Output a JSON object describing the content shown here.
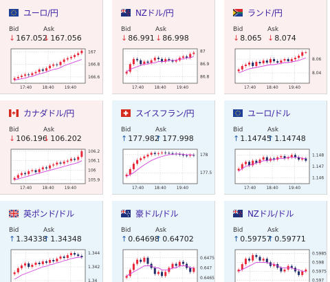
{
  "colors": {
    "down_card_bg": "#fbeff0",
    "up_card_bg": "#eaf4fb",
    "pair_name": "#3a1fa3",
    "down_arrow": "#e0393e",
    "up_arrow": "#1e5ba8",
    "candle_up": "#e8283a",
    "candle_down": "#1f2c66",
    "ma_line": "#d33fdc",
    "plot_grid": "#c8c8c8"
  },
  "labels": {
    "bid": "Bid",
    "ask": "Ask"
  },
  "cards": [
    {
      "pair": "ユーロ/円",
      "flag_icon": "eu-flag-icon",
      "direction": "down",
      "bid": "167.052",
      "ask": "167.056",
      "chart_data": {
        "type": "candlestick",
        "x_ticks": [
          "17:40",
          "18:40",
          "19:40"
        ],
        "y_ticks": [
          "167",
          "166.8",
          "166.6"
        ],
        "y_tick_values": [
          167,
          166.8,
          166.6
        ],
        "ylim": [
          166.5,
          167.05
        ],
        "series": [
          {
            "values": [
              166.58,
              166.6,
              166.62,
              166.64,
              166.63,
              166.66,
              166.68,
              166.72,
              166.7,
              166.74,
              166.78,
              166.8,
              166.79,
              166.84,
              166.88,
              166.9,
              166.92,
              166.95,
              166.98,
              167.02
            ]
          },
          {
            "values": [
              166.55,
              166.56,
              166.57,
              166.58,
              166.6,
              166.61,
              166.63,
              166.65,
              166.66,
              166.68,
              166.7,
              166.72,
              166.73,
              166.75,
              166.78,
              166.8,
              166.82,
              166.84,
              166.86,
              166.88
            ]
          }
        ]
      }
    },
    {
      "pair": "NZドル/円",
      "flag_icon": "nz-flag-icon",
      "direction": "down",
      "bid": "86.991",
      "ask": "86.998",
      "chart_data": {
        "type": "candlestick",
        "x_ticks": [
          "17:40",
          "18:40",
          "19:40"
        ],
        "y_ticks": [
          "87",
          "86.9",
          "86.8"
        ],
        "y_tick_values": [
          87,
          86.9,
          86.8
        ],
        "ylim": [
          86.75,
          87.02
        ],
        "series": [
          {
            "values": [
              86.84,
              86.9,
              86.94,
              86.93,
              86.9,
              86.92,
              86.91,
              86.93,
              86.95,
              86.94,
              86.92,
              86.94,
              86.93,
              86.92,
              86.93,
              86.95,
              86.96,
              86.95,
              86.98,
              86.99
            ]
          },
          {
            "values": [
              86.84,
              86.86,
              86.87,
              86.88,
              86.89,
              86.9,
              86.9,
              86.91,
              86.91,
              86.92,
              86.92,
              86.92,
              86.93,
              86.93,
              86.93,
              86.94,
              86.94,
              86.95,
              86.95,
              86.96
            ]
          }
        ]
      }
    },
    {
      "pair": "ランド/円",
      "flag_icon": "za-flag-icon",
      "direction": "down",
      "bid": "8.065",
      "ask": "8.074",
      "chart_data": {
        "type": "candlestick",
        "x_ticks": [
          "17:40",
          "18:40",
          "19:40"
        ],
        "y_ticks": [
          "8.06",
          "8.04"
        ],
        "y_tick_values": [
          8.06,
          8.04
        ],
        "ylim": [
          8.025,
          8.075
        ],
        "series": [
          {
            "values": [
              8.045,
              8.05,
              8.052,
              8.055,
              8.05,
              8.056,
              8.054,
              8.058,
              8.055,
              8.06,
              8.057,
              8.055,
              8.058,
              8.06,
              8.057,
              8.06,
              8.062,
              8.065,
              8.07,
              8.07
            ]
          },
          {
            "values": [
              8.04,
              8.042,
              8.044,
              8.046,
              8.047,
              8.048,
              8.049,
              8.05,
              8.051,
              8.052,
              8.052,
              8.053,
              8.054,
              8.055,
              8.055,
              8.056,
              8.057,
              8.058,
              8.06,
              8.062
            ]
          }
        ]
      }
    },
    {
      "pair": "カナダドル/円",
      "flag_icon": "ca-flag-icon",
      "direction": "down",
      "bid": "106.196",
      "ask": "106.202",
      "chart_data": {
        "type": "candlestick",
        "x_ticks": [
          "17:40",
          "18:40",
          "19:40"
        ],
        "y_ticks": [
          "106.2",
          "106.1",
          "106",
          "105.9"
        ],
        "y_tick_values": [
          106.2,
          106.1,
          106,
          105.9
        ],
        "ylim": [
          105.86,
          106.22
        ],
        "series": [
          {
            "values": [
              105.92,
              105.95,
              105.97,
              105.96,
              105.99,
              106.0,
              105.98,
              106.01,
              106.03,
              106.02,
              106.05,
              106.06,
              106.08,
              106.07,
              106.09,
              106.1,
              106.12,
              106.11,
              106.14,
              106.2
            ]
          },
          {
            "values": [
              105.9,
              105.91,
              105.92,
              105.93,
              105.94,
              105.95,
              105.96,
              105.97,
              105.98,
              105.99,
              106.0,
              106.01,
              106.02,
              106.03,
              106.04,
              106.05,
              106.06,
              106.07,
              106.08,
              106.1
            ]
          }
        ]
      }
    },
    {
      "pair": "スイスフラン/円",
      "flag_icon": "ch-flag-icon",
      "direction": "up",
      "bid": "177.982",
      "ask": "177.998",
      "chart_data": {
        "type": "candlestick",
        "x_ticks": [
          "17:40",
          "18:40",
          "19:40"
        ],
        "y_ticks": [
          "178",
          "177.5"
        ],
        "y_tick_values": [
          178,
          177.5
        ],
        "ylim": [
          177.2,
          178.15
        ],
        "series": [
          {
            "values": [
              177.45,
              177.6,
              177.75,
              177.85,
              177.9,
              177.95,
              178.0,
              178.05,
              178.02,
              178.04,
              178.06,
              178.05,
              178.04,
              178.03,
              178.02,
              178.0,
              177.98,
              177.97,
              177.99,
              177.98
            ]
          },
          {
            "values": [
              177.4,
              177.45,
              177.5,
              177.58,
              177.65,
              177.72,
              177.78,
              177.84,
              177.88,
              177.92,
              177.95,
              177.98,
              178.0,
              178.01,
              178.02,
              178.02,
              178.01,
              178.0,
              178.0,
              177.99
            ]
          }
        ]
      }
    },
    {
      "pair": "ユーロ/ドル",
      "flag_icon": "eu-flag-icon",
      "direction": "up",
      "bid": "1.14745",
      "ask": "1.14748",
      "chart_data": {
        "type": "candlestick",
        "x_ticks": [
          "17:40",
          "18:40",
          "19:40"
        ],
        "y_ticks": [
          "1.148",
          "1.147",
          "1.146"
        ],
        "y_tick_values": [
          1.148,
          1.147,
          1.146
        ],
        "ylim": [
          1.1455,
          1.1485
        ],
        "series": [
          {
            "values": [
              1.1468,
              1.1472,
              1.1474,
              1.1471,
              1.1475,
              1.1473,
              1.1476,
              1.1478,
              1.1475,
              1.1477,
              1.1476,
              1.1478,
              1.1479,
              1.1477,
              1.1478,
              1.148,
              1.1478,
              1.1476,
              1.1477,
              1.1475
            ]
          },
          {
            "values": [
              1.1466,
              1.1468,
              1.147,
              1.1471,
              1.1472,
              1.1473,
              1.1474,
              1.1475,
              1.1475,
              1.1476,
              1.1476,
              1.1477,
              1.1477,
              1.1477,
              1.1478,
              1.1478,
              1.1478,
              1.1478,
              1.1477,
              1.1477
            ]
          }
        ]
      }
    },
    {
      "pair": "英ポンド/ドル",
      "flag_icon": "gb-flag-icon",
      "direction": "up",
      "bid": "1.34338",
      "ask": "1.34348",
      "chart_data": {
        "type": "candlestick",
        "x_ticks": [
          "17:40",
          "18:40",
          "19:40"
        ],
        "y_ticks": [
          "1.344",
          "1.342",
          "1.34"
        ],
        "y_tick_values": [
          1.344,
          1.342,
          1.34
        ],
        "ylim": [
          1.3395,
          1.3445
        ],
        "series": [
          {
            "values": [
              1.3412,
              1.3418,
              1.3422,
              1.3425,
              1.342,
              1.3423,
              1.3426,
              1.3424,
              1.3428,
              1.3426,
              1.343,
              1.3428,
              1.3432,
              1.3435,
              1.3433,
              1.3437,
              1.344,
              1.3438,
              1.3436,
              1.3434
            ]
          },
          {
            "values": [
              1.3402,
              1.3405,
              1.3408,
              1.341,
              1.3412,
              1.3414,
              1.3416,
              1.3418,
              1.342,
              1.3421,
              1.3423,
              1.3424,
              1.3426,
              1.3427,
              1.3429,
              1.343,
              1.3432,
              1.3433,
              1.3434,
              1.3434
            ]
          }
        ]
      }
    },
    {
      "pair": "豪ドル/ドル",
      "flag_icon": "au-flag-icon",
      "direction": "up",
      "bid": "0.64698",
      "ask": "0.64702",
      "chart_data": {
        "type": "candlestick",
        "x_ticks": [
          "17:40",
          "18:40",
          "19:40"
        ],
        "y_ticks": [
          "0.6475",
          "0.647",
          "0.6465"
        ],
        "y_tick_values": [
          0.6475,
          0.647,
          0.6465
        ],
        "ylim": [
          0.6462,
          0.6479
        ],
        "series": [
          {
            "values": [
              0.6466,
              0.6469,
              0.6472,
              0.6474,
              0.6473,
              0.6475,
              0.6472,
              0.647,
              0.6467,
              0.6468,
              0.6466,
              0.6468,
              0.647,
              0.6472,
              0.6471,
              0.6473,
              0.6472,
              0.647,
              0.6468,
              0.647
            ]
          },
          {
            "values": [
              0.6466,
              0.6467,
              0.6468,
              0.6469,
              0.647,
              0.6471,
              0.6471,
              0.6471,
              0.647,
              0.647,
              0.6469,
              0.6469,
              0.6469,
              0.647,
              0.647,
              0.6471,
              0.6471,
              0.6471,
              0.647,
              0.647
            ]
          }
        ]
      }
    },
    {
      "pair": "NZドル/ドル",
      "flag_icon": "nz-flag-icon",
      "direction": "up",
      "bid": "0.59757",
      "ask": "0.59771",
      "chart_data": {
        "type": "candlestick",
        "x_ticks": [
          "17:40",
          "18:40",
          "19:40"
        ],
        "y_ticks": [
          "0.5985",
          "0.598",
          "0.5975",
          "0.597"
        ],
        "y_tick_values": [
          0.5985,
          0.598,
          0.5975,
          0.597
        ],
        "ylim": [
          0.5968,
          0.5987
        ],
        "series": [
          {
            "values": [
              0.5976,
              0.5979,
              0.5982,
              0.5981,
              0.5984,
              0.5983,
              0.5981,
              0.5982,
              0.598,
              0.5978,
              0.5979,
              0.5977,
              0.5975,
              0.5976,
              0.5978,
              0.5977,
              0.5975,
              0.5973,
              0.5975,
              0.5976
            ]
          },
          {
            "values": [
              0.5975,
              0.5976,
              0.5977,
              0.5978,
              0.5979,
              0.598,
              0.598,
              0.598,
              0.598,
              0.5979,
              0.5979,
              0.5978,
              0.5977,
              0.5977,
              0.5977,
              0.5977,
              0.5976,
              0.5976,
              0.5975,
              0.5975
            ]
          }
        ]
      }
    }
  ]
}
